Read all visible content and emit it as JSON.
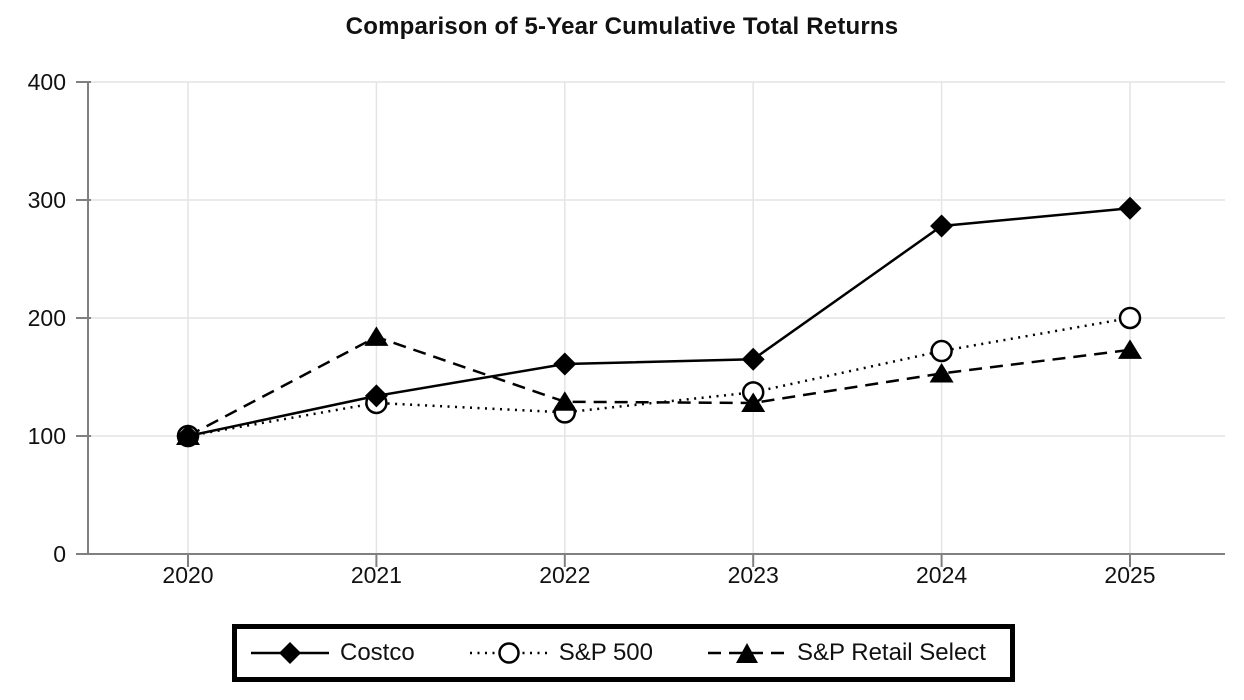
{
  "page": {
    "background": "#ffffff"
  },
  "chart_data": {
    "type": "line",
    "title": "Comparison of 5-Year Cumulative Total Returns",
    "categories": [
      "2020",
      "2021",
      "2022",
      "2023",
      "2024",
      "2025"
    ],
    "series": [
      {
        "name": "Costco",
        "values": [
          100,
          134,
          161,
          165,
          278,
          293
        ],
        "line": "solid",
        "marker": "diamond",
        "color": "#000000"
      },
      {
        "name": "S&P 500",
        "values": [
          100,
          128,
          120,
          137,
          172,
          200
        ],
        "line": "dotted",
        "marker": "circle-open",
        "color": "#000000"
      },
      {
        "name": "S&P Retail Select",
        "values": [
          100,
          184,
          129,
          128,
          153,
          173
        ],
        "line": "dashed",
        "marker": "triangle",
        "color": "#000000"
      }
    ],
    "y_ticks": [
      0,
      100,
      200,
      300,
      400
    ],
    "ylim": [
      0,
      400
    ],
    "xlabel": "",
    "ylabel": "",
    "grid": true,
    "legend_position": "bottom",
    "axis_color": "#808080",
    "grid_color": "#e4e4e4",
    "text_color": "#111111"
  }
}
